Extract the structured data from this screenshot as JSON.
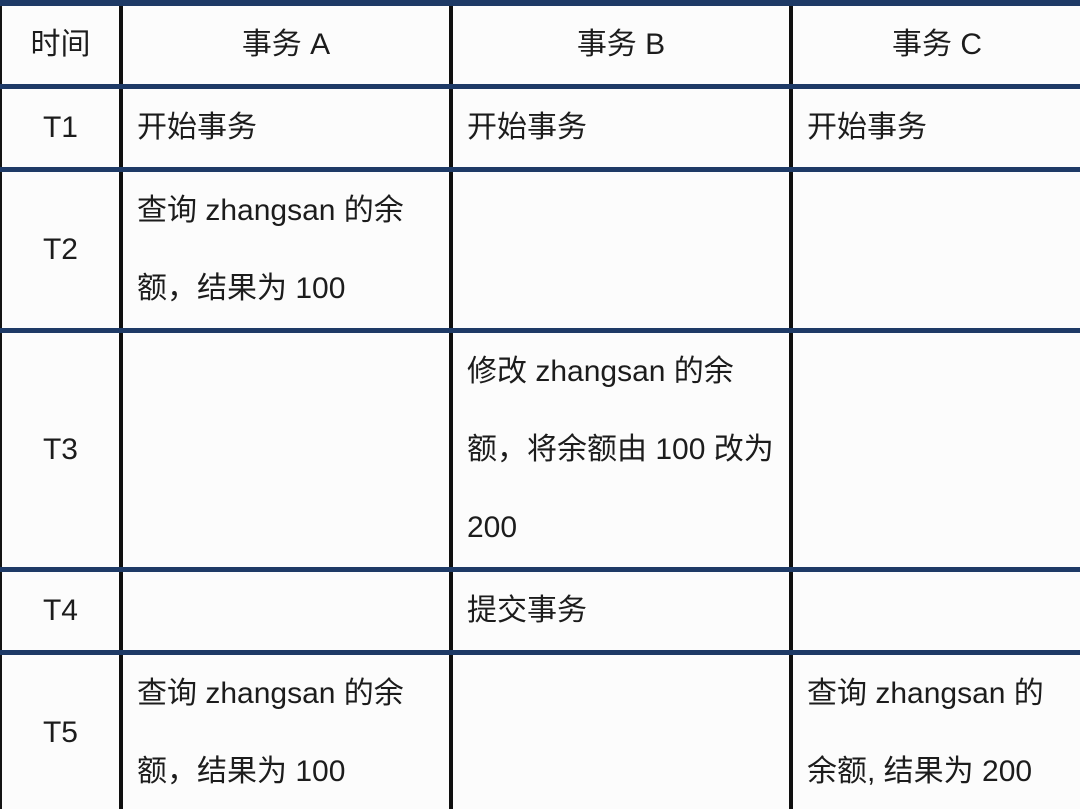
{
  "table": {
    "title": "transaction-timeline-table",
    "headers": {
      "time": "时间",
      "a": "事务 A",
      "b": "事务 B",
      "c": "事务 C"
    },
    "rows": [
      {
        "time": "T1",
        "a": "开始事务",
        "b": "开始事务",
        "c": "开始事务"
      },
      {
        "time": "T2",
        "a": "查询 zhangsan 的余额，结果为 100",
        "b": "",
        "c": ""
      },
      {
        "time": "T3",
        "a": "",
        "b": "修改 zhangsan 的余额，将余额由 100 改为 200",
        "c": ""
      },
      {
        "time": "T4",
        "a": "",
        "b": "提交事务",
        "c": ""
      },
      {
        "time": "T5",
        "a": "查询 zhangsan 的余额，结果为 100",
        "b": "",
        "c": "查询 zhangsan 的余额, 结果为 200"
      }
    ],
    "colors": {
      "horizontal_rule": "#1e3a66",
      "vertical_rule": "#0f0f0f",
      "text": "#1c1c1c",
      "background": "#fcfcfc"
    }
  }
}
